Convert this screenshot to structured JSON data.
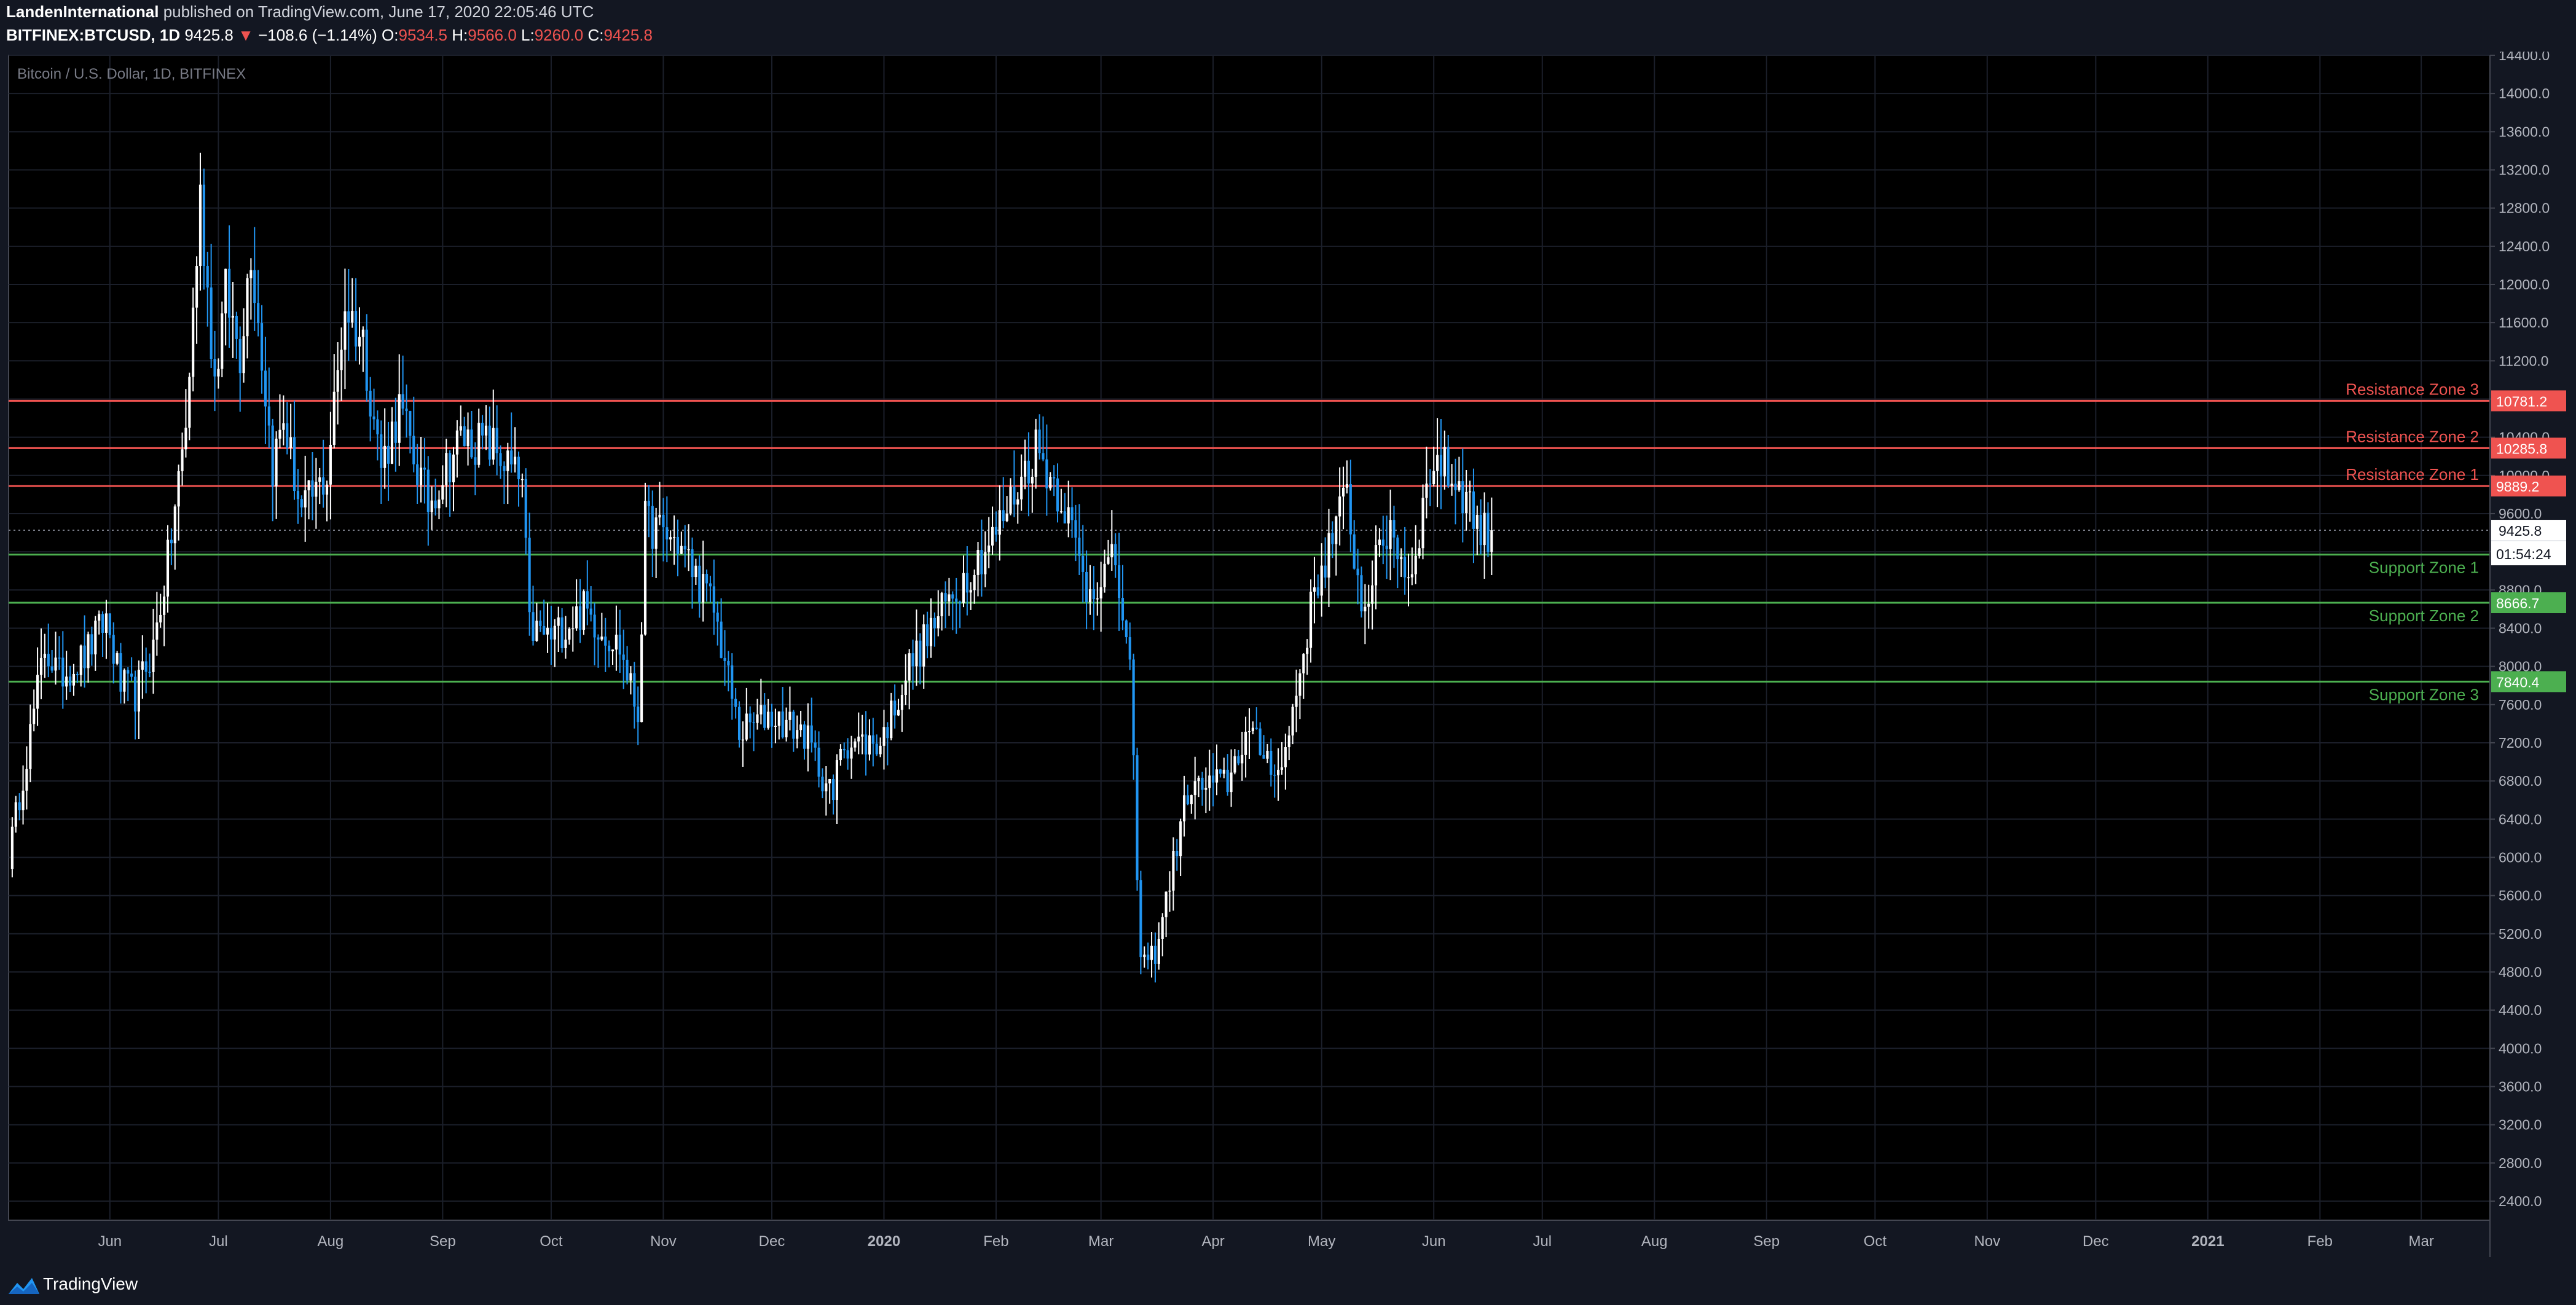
{
  "header": {
    "author": "LandenInternational",
    "published_text": "published on TradingView.com, June 17, 2020 22:05:46 UTC",
    "symbol": "BITFINEX:BTCUSD, 1D",
    "last": "9425.8",
    "change_arrow": "▼",
    "change": "−108.6 (−1.14%)",
    "o_label": "O:",
    "o": "9534.5",
    "h_label": "H:",
    "h": "9566.0",
    "l_label": "L:",
    "l": "9260.0",
    "c_label": "C:",
    "c": "9425.8"
  },
  "footer": {
    "brand": "TradingView"
  },
  "colors": {
    "background": "#131722",
    "pane": "#000000",
    "grid": "#1b1f2a",
    "up_candle": "#ffffff",
    "down_candle": "#2196f3",
    "resistance": "#ef5350",
    "support": "#4caf50"
  },
  "chart_data": {
    "type": "candlestick",
    "title": "Bitcoin / U.S. Dollar, 1D, BITFINEX",
    "ylim": [
      2200,
      14400
    ],
    "y_ticks": [
      "2400.0",
      "2800.0",
      "3200.0",
      "3600.0",
      "4000.0",
      "4400.0",
      "4800.0",
      "5200.0",
      "5600.0",
      "6000.0",
      "6400.0",
      "6800.0",
      "7200.0",
      "7600.0",
      "8000.0",
      "8400.0",
      "8800.0",
      "9200.0",
      "9600.0",
      "10000.0",
      "10400.0",
      "10800.0",
      "11200.0",
      "11600.0",
      "12000.0",
      "12400.0",
      "12800.0",
      "13200.0",
      "13600.0",
      "14000.0",
      "14400.0"
    ],
    "x_range": [
      "2019-05-04",
      "2021-03-20"
    ],
    "x_ticks": [
      {
        "label": "Jun",
        "date": "2019-06-01"
      },
      {
        "label": "Jul",
        "date": "2019-07-01"
      },
      {
        "label": "Aug",
        "date": "2019-08-01"
      },
      {
        "label": "Sep",
        "date": "2019-09-01"
      },
      {
        "label": "Oct",
        "date": "2019-10-01"
      },
      {
        "label": "Nov",
        "date": "2019-11-01"
      },
      {
        "label": "Dec",
        "date": "2019-12-01"
      },
      {
        "label": "2020",
        "date": "2020-01-01"
      },
      {
        "label": "Feb",
        "date": "2020-02-01"
      },
      {
        "label": "Mar",
        "date": "2020-03-01"
      },
      {
        "label": "Apr",
        "date": "2020-04-01"
      },
      {
        "label": "May",
        "date": "2020-05-01"
      },
      {
        "label": "Jun",
        "date": "2020-06-01"
      },
      {
        "label": "Jul",
        "date": "2020-07-01"
      },
      {
        "label": "Aug",
        "date": "2020-08-01"
      },
      {
        "label": "Sep",
        "date": "2020-09-01"
      },
      {
        "label": "Oct",
        "date": "2020-10-01"
      },
      {
        "label": "Nov",
        "date": "2020-11-01"
      },
      {
        "label": "Dec",
        "date": "2020-12-01"
      },
      {
        "label": "2021",
        "date": "2021-01-01"
      },
      {
        "label": "Feb",
        "date": "2021-02-01"
      },
      {
        "label": "Mar",
        "date": "2021-03-01"
      }
    ],
    "close_path": [
      {
        "date": "2019-05-04",
        "close": 6000
      },
      {
        "date": "2019-05-10",
        "close": 7300
      },
      {
        "date": "2019-05-14",
        "close": 8200
      },
      {
        "date": "2019-05-18",
        "close": 7900
      },
      {
        "date": "2019-05-25",
        "close": 8100
      },
      {
        "date": "2019-05-31",
        "close": 8500
      },
      {
        "date": "2019-06-04",
        "close": 7800
      },
      {
        "date": "2019-06-08",
        "close": 7700
      },
      {
        "date": "2019-06-13",
        "close": 8200
      },
      {
        "date": "2019-06-17",
        "close": 9100
      },
      {
        "date": "2019-06-22",
        "close": 10500
      },
      {
        "date": "2019-06-26",
        "close": 12900
      },
      {
        "date": "2019-06-30",
        "close": 11000
      },
      {
        "date": "2019-07-03",
        "close": 11900
      },
      {
        "date": "2019-07-07",
        "close": 11300
      },
      {
        "date": "2019-07-10",
        "close": 12400
      },
      {
        "date": "2019-07-16",
        "close": 10100
      },
      {
        "date": "2019-07-19",
        "close": 10600
      },
      {
        "date": "2019-07-24",
        "close": 9600
      },
      {
        "date": "2019-07-31",
        "close": 10000
      },
      {
        "date": "2019-08-05",
        "close": 11800
      },
      {
        "date": "2019-08-10",
        "close": 11400
      },
      {
        "date": "2019-08-15",
        "close": 10100
      },
      {
        "date": "2019-08-20",
        "close": 10700
      },
      {
        "date": "2019-08-28",
        "close": 9700
      },
      {
        "date": "2019-09-06",
        "close": 10400
      },
      {
        "date": "2019-09-15",
        "close": 10300
      },
      {
        "date": "2019-09-23",
        "close": 9900
      },
      {
        "date": "2019-09-25",
        "close": 8400
      },
      {
        "date": "2019-10-01",
        "close": 8300
      },
      {
        "date": "2019-10-10",
        "close": 8600
      },
      {
        "date": "2019-10-20",
        "close": 8200
      },
      {
        "date": "2019-10-25",
        "close": 7500
      },
      {
        "date": "2019-10-27",
        "close": 9500
      },
      {
        "date": "2019-11-05",
        "close": 9300
      },
      {
        "date": "2019-11-15",
        "close": 8600
      },
      {
        "date": "2019-11-22",
        "close": 7300
      },
      {
        "date": "2019-11-30",
        "close": 7500
      },
      {
        "date": "2019-12-10",
        "close": 7300
      },
      {
        "date": "2019-12-18",
        "close": 6600
      },
      {
        "date": "2019-12-20",
        "close": 7200
      },
      {
        "date": "2019-12-31",
        "close": 7200
      },
      {
        "date": "2020-01-08",
        "close": 8000
      },
      {
        "date": "2020-01-19",
        "close": 8700
      },
      {
        "date": "2020-02-01",
        "close": 9400
      },
      {
        "date": "2020-02-12",
        "close": 10300
      },
      {
        "date": "2020-02-20",
        "close": 9700
      },
      {
        "date": "2020-02-26",
        "close": 8800
      },
      {
        "date": "2020-03-05",
        "close": 9100
      },
      {
        "date": "2020-03-09",
        "close": 7900
      },
      {
        "date": "2020-03-12",
        "close": 4900
      },
      {
        "date": "2020-03-16",
        "close": 5000
      },
      {
        "date": "2020-03-25",
        "close": 6700
      },
      {
        "date": "2020-04-05",
        "close": 6800
      },
      {
        "date": "2020-04-10",
        "close": 7300
      },
      {
        "date": "2020-04-20",
        "close": 6900
      },
      {
        "date": "2020-04-29",
        "close": 8800
      },
      {
        "date": "2020-05-08",
        "close": 9800
      },
      {
        "date": "2020-05-12",
        "close": 8600
      },
      {
        "date": "2020-05-20",
        "close": 9500
      },
      {
        "date": "2020-05-25",
        "close": 8900
      },
      {
        "date": "2020-06-01",
        "close": 10200
      },
      {
        "date": "2020-06-10",
        "close": 9800
      },
      {
        "date": "2020-06-14",
        "close": 9400
      },
      {
        "date": "2020-06-17",
        "close": 9425.8
      }
    ],
    "levels": [
      {
        "kind": "resistance",
        "name": "Resistance Zone 3",
        "value": "10781.2"
      },
      {
        "kind": "resistance",
        "name": "Resistance Zone 2",
        "value": "10285.8"
      },
      {
        "kind": "resistance",
        "name": "Resistance Zone 1",
        "value": "9889.2"
      },
      {
        "kind": "support",
        "name": "Support Zone 1",
        "value": "9170.7"
      },
      {
        "kind": "support",
        "name": "Support Zone 2",
        "value": "8666.7"
      },
      {
        "kind": "support",
        "name": "Support Zone 3",
        "value": "7840.4"
      }
    ],
    "last_price": {
      "value": "9425.8",
      "countdown": "01:54:24"
    }
  }
}
